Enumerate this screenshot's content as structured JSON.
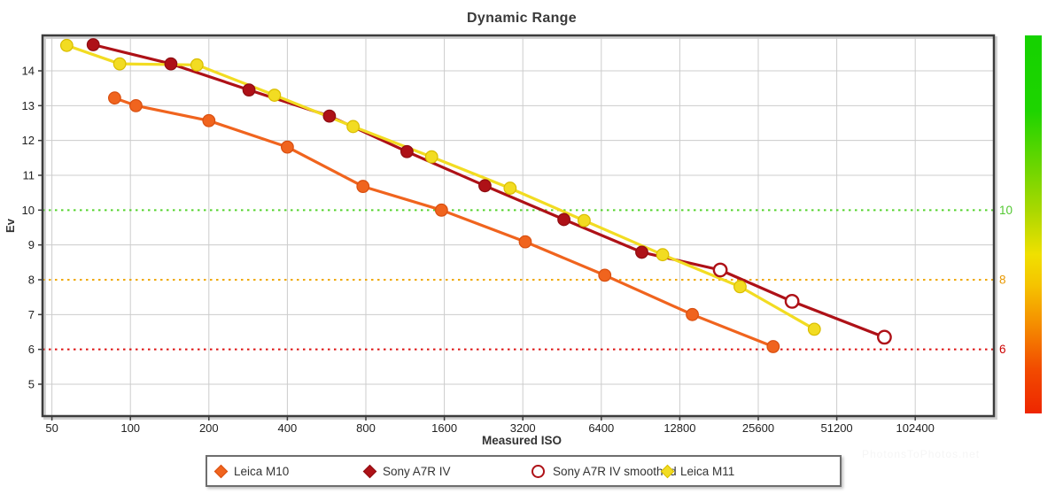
{
  "watermark": {
    "text": "PhotonsToPhotos.net"
  },
  "chart_data": {
    "type": "line",
    "title": "Dynamic Range",
    "xlabel": "Measured ISO",
    "ylabel": "Ev",
    "x_scale": "log2",
    "x_ticks": [
      50,
      100,
      200,
      400,
      800,
      1600,
      3200,
      6400,
      12800,
      25600,
      51200,
      102400
    ],
    "x_range": [
      46,
      204800
    ],
    "y_ticks": [
      5,
      6,
      7,
      8,
      9,
      10,
      11,
      12,
      13,
      14
    ],
    "y_range": [
      4.08,
      15.02
    ],
    "grid": true,
    "grid_color": "#cccccc",
    "border_color": "#3c3c3c",
    "legend_position": "bottom-center",
    "reference_lines": [
      {
        "ev": 10,
        "color": "#55d42d",
        "label": "10",
        "label_color": "#53c832"
      },
      {
        "ev": 8,
        "color": "#f0a800",
        "label": "8",
        "label_color": "#e89800"
      },
      {
        "ev": 6,
        "color": "#dd1111",
        "label": "6",
        "label_color": "#cc0000"
      }
    ],
    "series": [
      {
        "name": "Leica M10",
        "color": "#f0641e",
        "marker": "filled-circle",
        "marker_stroke": "#d84f10",
        "points": [
          [
            87,
            13.22
          ],
          [
            105,
            13.0
          ],
          [
            200,
            12.57
          ],
          [
            400,
            11.81
          ],
          [
            780,
            10.68
          ],
          [
            1560,
            10.0
          ],
          [
            3270,
            9.09
          ],
          [
            6600,
            8.13
          ],
          [
            14300,
            7.0
          ],
          [
            29200,
            6.08
          ]
        ]
      },
      {
        "name": "Sony A7R IV",
        "color": "#ae1117",
        "marker": "filled-circle",
        "marker_stroke": "#8e0d12",
        "points": [
          [
            72,
            14.75
          ],
          [
            143,
            14.2
          ],
          [
            285,
            13.45
          ],
          [
            580,
            12.7
          ],
          [
            1150,
            11.68
          ],
          [
            2290,
            10.7
          ],
          [
            4600,
            9.73
          ],
          [
            9150,
            8.79
          ]
        ]
      },
      {
        "name": "Sony A7R IV smoothed",
        "color": "#ae1117",
        "marker": "open-circle",
        "marker_stroke": "#ae1117",
        "connects_from_series": "Sony A7R IV",
        "points": [
          [
            18300,
            8.28
          ],
          [
            34500,
            7.38
          ],
          [
            78000,
            6.35
          ]
        ]
      },
      {
        "name": "Leica M11",
        "color": "#f2dc22",
        "marker": "filled-circle",
        "marker_stroke": "#d9bd00",
        "points": [
          [
            57,
            14.73
          ],
          [
            91,
            14.2
          ],
          [
            180,
            14.17
          ],
          [
            357,
            13.3
          ],
          [
            715,
            12.4
          ],
          [
            1430,
            11.53
          ],
          [
            2860,
            10.63
          ],
          [
            5500,
            9.7
          ],
          [
            11000,
            8.72
          ],
          [
            21800,
            7.8
          ],
          [
            42000,
            6.58
          ]
        ]
      }
    ],
    "colorbar": {
      "stops": [
        {
          "offset": 0.0,
          "color": "#15d200"
        },
        {
          "offset": 0.2,
          "color": "#1ed400"
        },
        {
          "offset": 0.46,
          "color": "#a8d800"
        },
        {
          "offset": 0.58,
          "color": "#f0e000"
        },
        {
          "offset": 0.66,
          "color": "#f5c400"
        },
        {
          "offset": 0.76,
          "color": "#f59000"
        },
        {
          "offset": 0.88,
          "color": "#f24c00"
        },
        {
          "offset": 1.0,
          "color": "#ee2600"
        }
      ]
    }
  }
}
